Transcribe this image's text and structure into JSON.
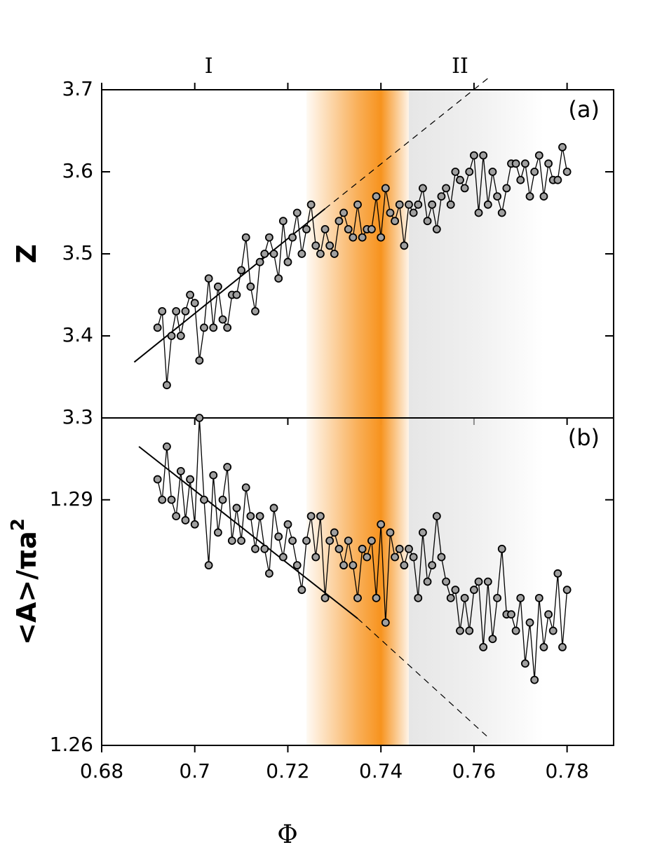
{
  "chart_data": [
    {
      "type": "line",
      "panel_label": "(a)",
      "y_label": "Z",
      "region_labels": [
        {
          "text": "I",
          "x": 0.703
        },
        {
          "text": "II",
          "x": 0.757
        }
      ],
      "xlim": [
        0.68,
        0.79
      ],
      "xticks": [
        0.68,
        0.7,
        0.72,
        0.74,
        0.76,
        0.78
      ],
      "show_xtick_labels": false,
      "ylim": [
        3.3,
        3.7
      ],
      "yticks": [
        3.3,
        3.4,
        3.5,
        3.6,
        3.7
      ],
      "bands": [
        {
          "from": 0.724,
          "to": 0.746,
          "peak": 0.74,
          "color": "#f7931e"
        },
        {
          "from": 0.746,
          "to": 0.775,
          "color": "#e6e6e6"
        }
      ],
      "marker_color": "#a0a0a0",
      "line_color": "#000000",
      "x": [
        0.692,
        0.693,
        0.694,
        0.695,
        0.696,
        0.697,
        0.698,
        0.699,
        0.7,
        0.701,
        0.702,
        0.703,
        0.704,
        0.705,
        0.706,
        0.707,
        0.708,
        0.709,
        0.71,
        0.711,
        0.712,
        0.713,
        0.714,
        0.715,
        0.716,
        0.717,
        0.718,
        0.719,
        0.72,
        0.721,
        0.722,
        0.723,
        0.724,
        0.725,
        0.726,
        0.727,
        0.728,
        0.729,
        0.73,
        0.731,
        0.732,
        0.733,
        0.734,
        0.735,
        0.736,
        0.737,
        0.738,
        0.739,
        0.74,
        0.741,
        0.742,
        0.743,
        0.744,
        0.745,
        0.746,
        0.747,
        0.748,
        0.749,
        0.75,
        0.751,
        0.752,
        0.753,
        0.754,
        0.755,
        0.756,
        0.757,
        0.758,
        0.759,
        0.76,
        0.761,
        0.762,
        0.763,
        0.764,
        0.765,
        0.766,
        0.767,
        0.768,
        0.769,
        0.77,
        0.771,
        0.772,
        0.773,
        0.774,
        0.775,
        0.776,
        0.777,
        0.778,
        0.779,
        0.78
      ],
      "values": [
        3.41,
        3.43,
        3.34,
        3.4,
        3.43,
        3.4,
        3.43,
        3.45,
        3.44,
        3.37,
        3.41,
        3.47,
        3.41,
        3.46,
        3.42,
        3.41,
        3.45,
        3.45,
        3.48,
        3.52,
        3.46,
        3.43,
        3.49,
        3.5,
        3.52,
        3.5,
        3.47,
        3.54,
        3.49,
        3.52,
        3.55,
        3.5,
        3.53,
        3.56,
        3.51,
        3.5,
        3.53,
        3.51,
        3.5,
        3.54,
        3.55,
        3.53,
        3.52,
        3.56,
        3.52,
        3.53,
        3.53,
        3.57,
        3.52,
        3.58,
        3.55,
        3.54,
        3.56,
        3.51,
        3.56,
        3.55,
        3.56,
        3.58,
        3.54,
        3.56,
        3.53,
        3.57,
        3.58,
        3.56,
        3.6,
        3.59,
        3.58,
        3.6,
        3.62,
        3.55,
        3.62,
        3.56,
        3.6,
        3.57,
        3.55,
        3.58,
        3.61,
        3.61,
        3.59,
        3.61,
        3.57,
        3.6,
        3.62,
        3.57,
        3.61,
        3.59,
        3.59,
        3.63,
        3.6
      ],
      "fit": {
        "x": [
          0.687,
          0.728
        ],
        "values": [
          3.368,
          3.555
        ]
      },
      "fit_extension": {
        "x": [
          0.728,
          0.763
        ],
        "values": [
          3.555,
          3.714
        ]
      }
    },
    {
      "type": "line",
      "panel_label": "(b)",
      "y_label": "<A>/πa",
      "y_label_superscript": "2",
      "x_label": "Φ",
      "xlim": [
        0.68,
        0.79
      ],
      "xticks": [
        0.68,
        0.7,
        0.72,
        0.74,
        0.76,
        0.78
      ],
      "show_xtick_labels": true,
      "ylim": [
        1.26,
        1.3
      ],
      "yticks": [
        1.26,
        1.29
      ],
      "bands": [
        {
          "from": 0.724,
          "to": 0.746,
          "peak": 0.74,
          "color": "#f7931e"
        },
        {
          "from": 0.746,
          "to": 0.775,
          "color": "#e6e6e6"
        }
      ],
      "marker_color": "#a0a0a0",
      "line_color": "#000000",
      "x": [
        0.692,
        0.693,
        0.694,
        0.695,
        0.696,
        0.697,
        0.698,
        0.699,
        0.7,
        0.701,
        0.702,
        0.703,
        0.704,
        0.705,
        0.706,
        0.707,
        0.708,
        0.709,
        0.71,
        0.711,
        0.712,
        0.713,
        0.714,
        0.715,
        0.716,
        0.717,
        0.718,
        0.719,
        0.72,
        0.721,
        0.722,
        0.723,
        0.724,
        0.725,
        0.726,
        0.727,
        0.728,
        0.729,
        0.73,
        0.731,
        0.732,
        0.733,
        0.734,
        0.735,
        0.736,
        0.737,
        0.738,
        0.739,
        0.74,
        0.741,
        0.742,
        0.743,
        0.744,
        0.745,
        0.746,
        0.747,
        0.748,
        0.749,
        0.75,
        0.751,
        0.752,
        0.753,
        0.754,
        0.755,
        0.756,
        0.757,
        0.758,
        0.759,
        0.76,
        0.761,
        0.762,
        0.763,
        0.764,
        0.765,
        0.766,
        0.767,
        0.768,
        0.769,
        0.77,
        0.771,
        0.772,
        0.773,
        0.774,
        0.775,
        0.776,
        0.777,
        0.778,
        0.779,
        0.78
      ],
      "values": [
        1.2925,
        1.29,
        1.2965,
        1.29,
        1.288,
        1.2935,
        1.2875,
        1.2925,
        1.287,
        1.3,
        1.29,
        1.282,
        1.293,
        1.286,
        1.29,
        1.294,
        1.285,
        1.289,
        1.285,
        1.2915,
        1.288,
        1.284,
        1.288,
        1.284,
        1.281,
        1.289,
        1.2855,
        1.283,
        1.287,
        1.285,
        1.282,
        1.279,
        1.285,
        1.288,
        1.283,
        1.288,
        1.278,
        1.285,
        1.286,
        1.284,
        1.282,
        1.285,
        1.282,
        1.278,
        1.284,
        1.283,
        1.285,
        1.278,
        1.287,
        1.275,
        1.286,
        1.283,
        1.284,
        1.282,
        1.284,
        1.283,
        1.278,
        1.286,
        1.28,
        1.282,
        1.288,
        1.283,
        1.28,
        1.278,
        1.279,
        1.274,
        1.278,
        1.274,
        1.279,
        1.28,
        1.272,
        1.28,
        1.273,
        1.278,
        1.284,
        1.276,
        1.276,
        1.274,
        1.278,
        1.27,
        1.275,
        1.268,
        1.278,
        1.272,
        1.276,
        1.274,
        1.281,
        1.272,
        1.279
      ],
      "fit": {
        "x": [
          0.688,
          0.735
        ],
        "values": [
          1.2965,
          1.2755
        ]
      },
      "fit_extension": {
        "x": [
          0.735,
          0.763
        ],
        "values": [
          1.2755,
          1.261
        ]
      }
    }
  ]
}
